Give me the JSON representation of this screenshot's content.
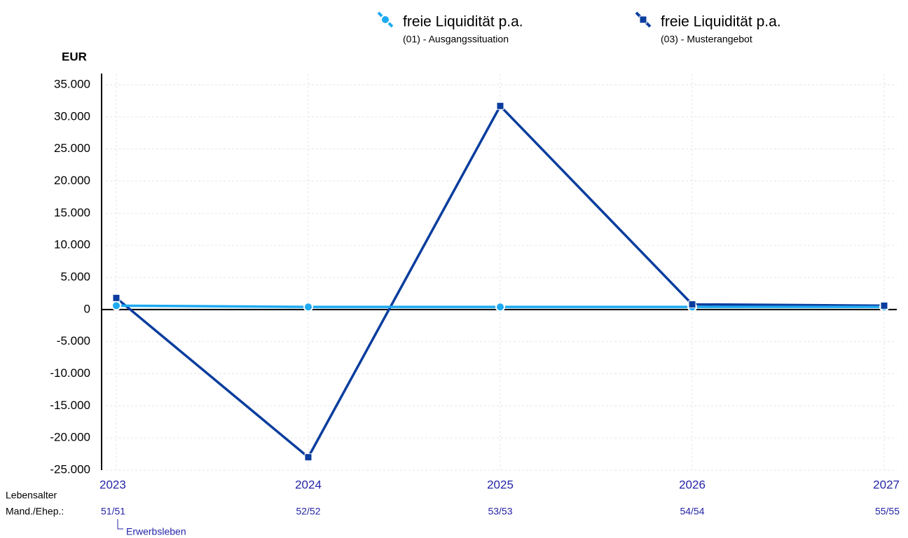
{
  "chart_data": {
    "type": "line",
    "y_label": "EUR",
    "categories": [
      "2023",
      "2024",
      "2025",
      "2026",
      "2027"
    ],
    "row_label_1": "Lebensalter",
    "row_label_2": "Mand./Ehep.:",
    "ages": [
      "51/51",
      "52/52",
      "53/53",
      "54/54",
      "55/55"
    ],
    "phase_label": "Erwerbsleben",
    "series": [
      {
        "name": "freie Liquidität p.a.",
        "scenario": "(01) - Ausgangssituation",
        "color": "#1eaaf1",
        "marker": "circle",
        "values": [
          600,
          400,
          400,
          400,
          400
        ]
      },
      {
        "name": "freie Liquidität p.a.",
        "scenario": "(03) - Musterangebot",
        "color": "#0a3d9e",
        "marker": "square",
        "values": [
          1800,
          -23000,
          31700,
          800,
          600
        ]
      }
    ],
    "ylim": [
      -25000,
      35000
    ],
    "yticks": [
      {
        "value": -25000,
        "label": "-25.000"
      },
      {
        "value": -20000,
        "label": "-20.000"
      },
      {
        "value": -15000,
        "label": "-15.000"
      },
      {
        "value": -10000,
        "label": "-10.000"
      },
      {
        "value": -5000,
        "label": "-5.000"
      },
      0,
      {
        "value": 5000,
        "label": "5.000"
      },
      {
        "value": 10000,
        "label": "10.000"
      },
      {
        "value": 15000,
        "label": "15.000"
      },
      {
        "value": 20000,
        "label": "20.000"
      },
      {
        "value": 25000,
        "label": "25.000"
      },
      {
        "value": 30000,
        "label": "30.000"
      },
      {
        "value": 35000,
        "label": "35.000"
      }
    ],
    "grid": true
  }
}
